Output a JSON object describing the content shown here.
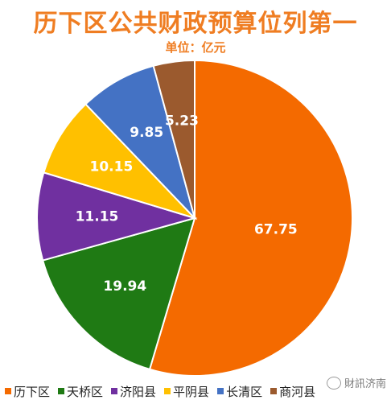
{
  "chart_data": {
    "type": "pie",
    "title": "历下区公共财政预算位列第一",
    "subtitle": "单位：亿元",
    "categories": [
      "历下区",
      "天桥区",
      "济阳县",
      "平阴县",
      "长清区",
      "商河县"
    ],
    "values": [
      67.75,
      19.94,
      11.15,
      10.15,
      9.85,
      5.23
    ],
    "value_labels": [
      "67.75",
      "19.94",
      "11.15",
      "10.15",
      "9.85",
      "5.23"
    ],
    "colors": [
      "#f46a00",
      "#1f7a14",
      "#7030a0",
      "#ffc000",
      "#4472c4",
      "#9b5a2e"
    ],
    "start_angle_deg": 0,
    "direction": "clockwise",
    "legend_position": "bottom"
  },
  "watermark": {
    "text": "財訊济南",
    "icon": "wechat-icon"
  }
}
